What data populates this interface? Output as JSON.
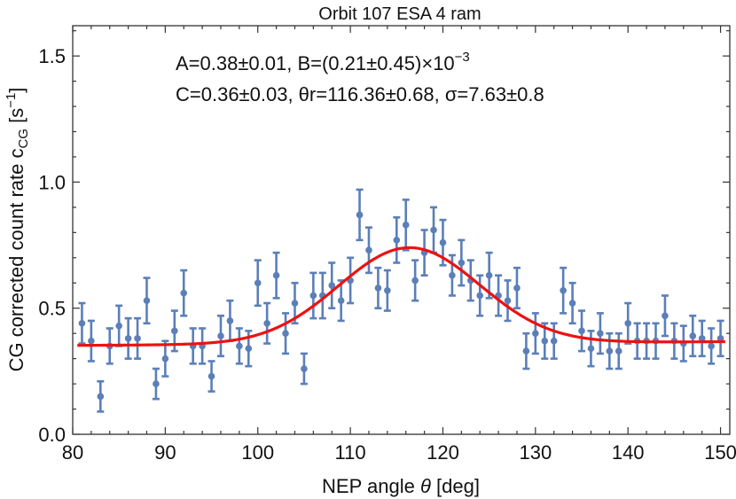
{
  "chart_data": {
    "type": "scatter",
    "title": "Orbit 107 ESA 4 ram",
    "xlabel_prefix": "NEP angle ",
    "xlabel_symbol": "θ",
    "xlabel_suffix": " [deg]",
    "ylabel_prefix": "CG corrected count rate c",
    "ylabel_sub": "CG",
    "ylabel_unit_open": " [s",
    "ylabel_unit_sup": "−1",
    "ylabel_unit_close": "]",
    "xlim": [
      80,
      151
    ],
    "ylim": [
      0.0,
      1.62
    ],
    "xticks": [
      80,
      90,
      100,
      110,
      120,
      130,
      140,
      150
    ],
    "yticks": [
      0.0,
      0.5,
      1.0,
      1.5
    ],
    "ytick_labels": [
      "0.0",
      "0.5",
      "1.0",
      "1.5"
    ],
    "annotation_line1_main": "A=0.38±0.01, B=(0.21±0.45)×10",
    "annotation_line1_sup": "−3",
    "annotation_line2": "C=0.36±0.03, θr=116.36±0.68, σ=7.63±0.8",
    "series": [
      {
        "name": "measured",
        "marker": "point with error bar",
        "color": "#5b7fb8",
        "x": [
          81,
          82,
          83,
          84,
          85,
          86,
          87,
          88,
          89,
          90,
          91,
          92,
          93,
          94,
          95,
          96,
          97,
          98,
          99,
          100,
          101,
          102,
          103,
          104,
          105,
          106,
          107,
          108,
          109,
          110,
          111,
          112,
          113,
          114,
          115,
          116,
          117,
          118,
          119,
          120,
          121,
          122,
          123,
          124,
          125,
          126,
          127,
          128,
          129,
          130,
          131,
          132,
          133,
          134,
          135,
          136,
          137,
          138,
          139,
          140,
          141,
          142,
          143,
          144,
          145,
          146,
          147,
          148,
          149,
          150
        ],
        "y": [
          0.44,
          0.37,
          0.15,
          0.35,
          0.43,
          0.38,
          0.38,
          0.53,
          0.2,
          0.3,
          0.41,
          0.56,
          0.35,
          0.35,
          0.23,
          0.39,
          0.45,
          0.35,
          0.34,
          0.6,
          0.44,
          0.63,
          0.4,
          0.52,
          0.26,
          0.55,
          0.55,
          0.59,
          0.53,
          0.61,
          0.87,
          0.73,
          0.58,
          0.57,
          0.77,
          0.83,
          0.61,
          0.72,
          0.81,
          0.76,
          0.63,
          0.68,
          0.61,
          0.55,
          0.63,
          0.55,
          0.53,
          0.58,
          0.33,
          0.4,
          0.37,
          0.37,
          0.57,
          0.52,
          0.41,
          0.34,
          0.4,
          0.33,
          0.33,
          0.44,
          0.37,
          0.37,
          0.37,
          0.47,
          0.37,
          0.36,
          0.39,
          0.38,
          0.35,
          0.38
        ],
        "err": [
          0.08,
          0.08,
          0.06,
          0.07,
          0.08,
          0.08,
          0.08,
          0.09,
          0.06,
          0.07,
          0.08,
          0.09,
          0.07,
          0.07,
          0.06,
          0.08,
          0.08,
          0.07,
          0.07,
          0.09,
          0.08,
          0.09,
          0.08,
          0.08,
          0.06,
          0.09,
          0.09,
          0.09,
          0.08,
          0.09,
          0.1,
          0.09,
          0.08,
          0.08,
          0.09,
          0.1,
          0.08,
          0.09,
          0.09,
          0.09,
          0.08,
          0.09,
          0.08,
          0.08,
          0.09,
          0.08,
          0.08,
          0.08,
          0.07,
          0.08,
          0.07,
          0.07,
          0.09,
          0.08,
          0.08,
          0.07,
          0.08,
          0.07,
          0.07,
          0.08,
          0.07,
          0.07,
          0.07,
          0.08,
          0.07,
          0.07,
          0.08,
          0.07,
          0.07,
          0.07
        ]
      },
      {
        "name": "fit",
        "type": "line",
        "color": "#ee1111",
        "model": "gaussian",
        "A": 0.38,
        "B": 0.00021,
        "C": 0.36,
        "theta_r": 116.36,
        "sigma": 7.63,
        "x_range": [
          80.5,
          150.5
        ]
      }
    ]
  }
}
